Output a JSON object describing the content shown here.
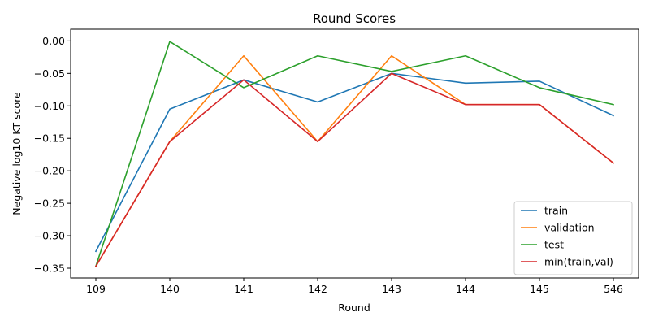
{
  "chart_data": {
    "type": "line",
    "title": "Round Scores",
    "xlabel": "Round",
    "ylabel": "Negative log10 KT score",
    "categories": [
      "109",
      "140",
      "141",
      "142",
      "143",
      "144",
      "145",
      "546"
    ],
    "ylim": [
      -0.365,
      0.018
    ],
    "yticks": [
      0.0,
      -0.05,
      -0.1,
      -0.15,
      -0.2,
      -0.25,
      -0.3,
      -0.35
    ],
    "ytick_labels": [
      "0.00",
      "−0.05",
      "−0.10",
      "−0.15",
      "−0.20",
      "−0.25",
      "−0.30",
      "−0.35"
    ],
    "grid": false,
    "legend_position": "lower-right",
    "series": [
      {
        "name": "train",
        "color": "#1f77b4",
        "values": [
          -0.324,
          -0.105,
          -0.06,
          -0.094,
          -0.05,
          -0.065,
          -0.062,
          -0.115
        ]
      },
      {
        "name": "validation",
        "color": "#ff7f0e",
        "values": [
          -0.347,
          -0.155,
          -0.023,
          -0.155,
          -0.023,
          -0.098,
          -0.098,
          -0.188
        ]
      },
      {
        "name": "test",
        "color": "#2ca02c",
        "values": [
          -0.347,
          -0.001,
          -0.072,
          -0.023,
          -0.047,
          -0.023,
          -0.072,
          -0.098
        ]
      },
      {
        "name": "min(train,val)",
        "color": "#d62728",
        "values": [
          -0.347,
          -0.155,
          -0.06,
          -0.155,
          -0.05,
          -0.098,
          -0.098,
          -0.188
        ]
      }
    ]
  }
}
